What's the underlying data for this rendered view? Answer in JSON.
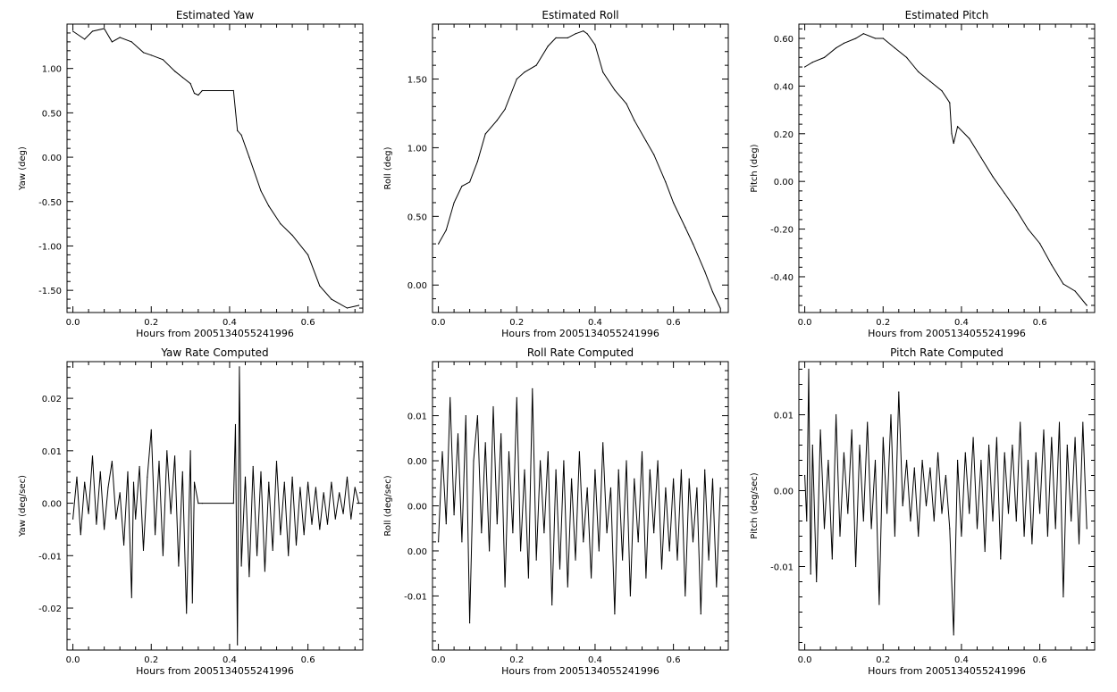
{
  "chart_data": [
    {
      "id": "yaw",
      "type": "line",
      "title": "Estimated Yaw",
      "xlabel": "Hours from 2005134055241996",
      "ylabel": "Yaw (deg)",
      "xlim": [
        -0.015,
        0.74
      ],
      "ylim": [
        -1.75,
        1.5
      ],
      "xticks": [
        0.0,
        0.2,
        0.4,
        0.6
      ],
      "xtick_labels": [
        "0.0",
        "0.2",
        "0.4",
        "0.6"
      ],
      "yticks": [
        -1.5,
        -1.0,
        -0.5,
        0.0,
        0.5,
        1.0
      ],
      "ytick_labels": [
        "-1.50",
        "-1.00",
        "-0.50",
        "0.00",
        "0.50",
        "1.00"
      ],
      "grid": false,
      "series": [
        {
          "x": [
            0.0,
            0.03,
            0.05,
            0.08,
            0.1,
            0.12,
            0.15,
            0.18,
            0.2,
            0.23,
            0.26,
            0.28,
            0.3,
            0.31,
            0.32,
            0.33,
            0.41,
            0.42,
            0.43,
            0.45,
            0.48,
            0.5,
            0.53,
            0.56,
            0.6,
            0.63,
            0.66,
            0.7,
            0.73
          ],
          "y": [
            1.42,
            1.33,
            1.42,
            1.45,
            1.3,
            1.35,
            1.3,
            1.18,
            1.15,
            1.1,
            0.97,
            0.9,
            0.83,
            0.72,
            0.7,
            0.75,
            0.75,
            0.3,
            0.25,
            0.0,
            -0.38,
            -0.55,
            -0.75,
            -0.88,
            -1.1,
            -1.45,
            -1.6,
            -1.7,
            -1.67
          ]
        }
      ]
    },
    {
      "id": "roll",
      "type": "line",
      "title": "Estimated Roll",
      "xlabel": "Hours from 2005134055241996",
      "ylabel": "Roll (deg)",
      "xlim": [
        -0.015,
        0.74
      ],
      "ylim": [
        -0.2,
        1.9
      ],
      "xticks": [
        0.0,
        0.2,
        0.4,
        0.6
      ],
      "xtick_labels": [
        "0.0",
        "0.2",
        "0.4",
        "0.6"
      ],
      "yticks": [
        0.0,
        0.5,
        1.0,
        1.5
      ],
      "ytick_labels": [
        "0.00",
        "0.50",
        "1.00",
        "1.50"
      ],
      "grid": false,
      "series": [
        {
          "x": [
            0.0,
            0.02,
            0.04,
            0.06,
            0.08,
            0.1,
            0.12,
            0.15,
            0.17,
            0.2,
            0.22,
            0.25,
            0.28,
            0.3,
            0.33,
            0.35,
            0.37,
            0.38,
            0.4,
            0.42,
            0.45,
            0.48,
            0.5,
            0.53,
            0.55,
            0.58,
            0.6,
            0.63,
            0.65,
            0.68,
            0.7,
            0.72
          ],
          "y": [
            0.3,
            0.4,
            0.6,
            0.72,
            0.75,
            0.9,
            1.1,
            1.2,
            1.28,
            1.5,
            1.55,
            1.6,
            1.74,
            1.8,
            1.8,
            1.83,
            1.85,
            1.83,
            1.75,
            1.55,
            1.42,
            1.32,
            1.2,
            1.05,
            0.95,
            0.75,
            0.6,
            0.42,
            0.3,
            0.1,
            -0.05,
            -0.17
          ]
        }
      ]
    },
    {
      "id": "pitch",
      "type": "line",
      "title": "Estimated Pitch",
      "xlabel": "Hours from 2005134055241996",
      "ylabel": "Pitch (deg)",
      "xlim": [
        -0.015,
        0.74
      ],
      "ylim": [
        -0.55,
        0.66
      ],
      "xticks": [
        0.0,
        0.2,
        0.4,
        0.6
      ],
      "xtick_labels": [
        "0.0",
        "0.2",
        "0.4",
        "0.6"
      ],
      "yticks": [
        -0.4,
        -0.2,
        0.0,
        0.2,
        0.4,
        0.6
      ],
      "ytick_labels": [
        "-0.40",
        "-0.20",
        "0.00",
        "0.20",
        "0.40",
        "0.60"
      ],
      "grid": false,
      "series": [
        {
          "x": [
            0.0,
            0.02,
            0.05,
            0.08,
            0.1,
            0.13,
            0.15,
            0.18,
            0.2,
            0.23,
            0.26,
            0.29,
            0.32,
            0.35,
            0.37,
            0.375,
            0.38,
            0.39,
            0.42,
            0.45,
            0.48,
            0.51,
            0.54,
            0.57,
            0.6,
            0.63,
            0.66,
            0.69,
            0.72
          ],
          "y": [
            0.48,
            0.5,
            0.52,
            0.56,
            0.58,
            0.6,
            0.62,
            0.6,
            0.6,
            0.56,
            0.52,
            0.46,
            0.42,
            0.38,
            0.33,
            0.2,
            0.16,
            0.23,
            0.18,
            0.1,
            0.02,
            -0.05,
            -0.12,
            -0.2,
            -0.26,
            -0.35,
            -0.43,
            -0.46,
            -0.52
          ]
        }
      ]
    },
    {
      "id": "yaw_rate",
      "type": "line",
      "title": "Yaw Rate Computed",
      "xlabel": "Hours from 2005134055241996",
      "ylabel": "Yaw (deg/sec)",
      "xlim": [
        -0.015,
        0.74
      ],
      "ylim": [
        -0.028,
        0.027
      ],
      "xticks": [
        0.0,
        0.2,
        0.4,
        0.6
      ],
      "xtick_labels": [
        "0.0",
        "0.2",
        "0.4",
        "0.6"
      ],
      "yticks": [
        -0.02,
        -0.01,
        0.0,
        0.01,
        0.02
      ],
      "ytick_labels": [
        "-0.02",
        "-0.01",
        "0.00",
        "0.01",
        "0.02"
      ],
      "grid": false,
      "series": [
        {
          "x": [
            0.0,
            0.01,
            0.02,
            0.03,
            0.04,
            0.05,
            0.06,
            0.07,
            0.08,
            0.09,
            0.1,
            0.11,
            0.12,
            0.13,
            0.14,
            0.15,
            0.155,
            0.16,
            0.17,
            0.18,
            0.19,
            0.2,
            0.21,
            0.22,
            0.23,
            0.24,
            0.25,
            0.26,
            0.27,
            0.28,
            0.29,
            0.3,
            0.305,
            0.31,
            0.32,
            0.33,
            0.41,
            0.415,
            0.42,
            0.425,
            0.43,
            0.44,
            0.45,
            0.46,
            0.47,
            0.48,
            0.49,
            0.5,
            0.51,
            0.52,
            0.53,
            0.54,
            0.55,
            0.56,
            0.57,
            0.58,
            0.59,
            0.6,
            0.61,
            0.62,
            0.63,
            0.64,
            0.65,
            0.66,
            0.67,
            0.68,
            0.69,
            0.7,
            0.71,
            0.72,
            0.73
          ],
          "y": [
            -0.003,
            0.005,
            -0.006,
            0.004,
            -0.002,
            0.009,
            -0.004,
            0.006,
            -0.005,
            0.003,
            0.008,
            -0.003,
            0.002,
            -0.008,
            0.006,
            -0.018,
            0.004,
            -0.003,
            0.007,
            -0.009,
            0.005,
            0.014,
            -0.006,
            0.008,
            -0.01,
            0.01,
            -0.002,
            0.009,
            -0.012,
            0.006,
            -0.021,
            0.01,
            -0.019,
            0.004,
            0.0,
            0.0,
            0.0,
            0.015,
            -0.027,
            0.026,
            -0.012,
            0.005,
            -0.014,
            0.007,
            -0.01,
            0.006,
            -0.013,
            0.004,
            -0.009,
            0.008,
            -0.006,
            0.004,
            -0.01,
            0.005,
            -0.008,
            0.003,
            -0.006,
            0.004,
            -0.004,
            0.003,
            -0.005,
            0.002,
            -0.004,
            0.004,
            -0.003,
            0.002,
            -0.002,
            0.005,
            -0.003,
            0.003,
            0.0
          ]
        }
      ]
    },
    {
      "id": "roll_rate",
      "type": "line",
      "title": "Roll Rate Computed",
      "xlabel": "Hours from 2005134055241996",
      "ylabel": "Roll (deg/sec)",
      "xlim": [
        -0.015,
        0.74
      ],
      "ylim": [
        -0.016,
        0.016
      ],
      "xticks": [
        0.0,
        0.2,
        0.4,
        0.6
      ],
      "xtick_labels": [
        "0.0",
        "0.2",
        "0.4",
        "0.6"
      ],
      "yticks": [
        -0.01,
        -0.005,
        0.0,
        0.005,
        0.01
      ],
      "ytick_labels": [
        "-0.01",
        "0.00",
        "0.00",
        "0.00",
        "0.01"
      ],
      "grid": false,
      "series": [
        {
          "x": [
            0.0,
            0.01,
            0.02,
            0.03,
            0.04,
            0.05,
            0.06,
            0.07,
            0.08,
            0.09,
            0.1,
            0.11,
            0.12,
            0.13,
            0.14,
            0.15,
            0.16,
            0.17,
            0.18,
            0.19,
            0.2,
            0.21,
            0.22,
            0.23,
            0.24,
            0.25,
            0.26,
            0.27,
            0.28,
            0.29,
            0.3,
            0.31,
            0.32,
            0.33,
            0.34,
            0.35,
            0.36,
            0.37,
            0.38,
            0.39,
            0.4,
            0.41,
            0.42,
            0.43,
            0.44,
            0.45,
            0.46,
            0.47,
            0.48,
            0.49,
            0.5,
            0.51,
            0.52,
            0.53,
            0.54,
            0.55,
            0.56,
            0.57,
            0.58,
            0.59,
            0.6,
            0.61,
            0.62,
            0.63,
            0.64,
            0.65,
            0.66,
            0.67,
            0.68,
            0.69,
            0.7,
            0.71,
            0.72
          ],
          "y": [
            -0.004,
            0.006,
            -0.002,
            0.012,
            -0.001,
            0.008,
            -0.004,
            0.01,
            -0.013,
            0.005,
            0.01,
            -0.003,
            0.007,
            -0.005,
            0.011,
            -0.002,
            0.008,
            -0.009,
            0.006,
            -0.003,
            0.012,
            -0.005,
            0.004,
            -0.008,
            0.013,
            -0.006,
            0.005,
            -0.003,
            0.006,
            -0.011,
            0.004,
            -0.007,
            0.005,
            -0.009,
            0.003,
            -0.006,
            0.006,
            -0.004,
            0.002,
            -0.008,
            0.004,
            -0.005,
            0.007,
            -0.003,
            0.002,
            -0.012,
            0.004,
            -0.006,
            0.005,
            -0.01,
            0.003,
            -0.004,
            0.006,
            -0.008,
            0.004,
            -0.003,
            0.005,
            -0.007,
            0.002,
            -0.005,
            0.003,
            -0.006,
            0.004,
            -0.01,
            0.003,
            -0.004,
            0.002,
            -0.012,
            0.004,
            -0.006,
            0.003,
            -0.009,
            0.002
          ]
        }
      ]
    },
    {
      "id": "pitch_rate",
      "type": "line",
      "title": "Pitch Rate Computed",
      "xlabel": "Hours from 2005134055241996",
      "ylabel": "Pitch (deg/sec)",
      "xlim": [
        -0.015,
        0.74
      ],
      "ylim": [
        -0.021,
        0.017
      ],
      "xticks": [
        0.0,
        0.2,
        0.4,
        0.6
      ],
      "xtick_labels": [
        "0.0",
        "0.2",
        "0.4",
        "0.6"
      ],
      "yticks": [
        -0.01,
        0.0,
        0.01
      ],
      "ytick_labels": [
        "-0.01",
        "0.00",
        "0.01"
      ],
      "grid": false,
      "series": [
        {
          "x": [
            0.0,
            0.005,
            0.01,
            0.015,
            0.02,
            0.03,
            0.04,
            0.05,
            0.06,
            0.07,
            0.08,
            0.09,
            0.1,
            0.11,
            0.12,
            0.13,
            0.14,
            0.15,
            0.16,
            0.17,
            0.18,
            0.19,
            0.2,
            0.21,
            0.22,
            0.23,
            0.24,
            0.25,
            0.26,
            0.27,
            0.28,
            0.29,
            0.3,
            0.31,
            0.32,
            0.33,
            0.34,
            0.35,
            0.36,
            0.37,
            0.38,
            0.39,
            0.4,
            0.41,
            0.42,
            0.43,
            0.44,
            0.45,
            0.46,
            0.47,
            0.48,
            0.49,
            0.5,
            0.51,
            0.52,
            0.53,
            0.54,
            0.55,
            0.56,
            0.57,
            0.58,
            0.59,
            0.6,
            0.61,
            0.62,
            0.63,
            0.64,
            0.65,
            0.66,
            0.67,
            0.68,
            0.69,
            0.7,
            0.71,
            0.72
          ],
          "y": [
            0.002,
            -0.004,
            0.016,
            -0.011,
            0.006,
            -0.012,
            0.008,
            -0.005,
            0.004,
            -0.009,
            0.01,
            -0.006,
            0.005,
            -0.003,
            0.008,
            -0.01,
            0.006,
            -0.004,
            0.009,
            -0.005,
            0.004,
            -0.015,
            0.007,
            -0.003,
            0.01,
            -0.006,
            0.013,
            -0.002,
            0.004,
            -0.004,
            0.003,
            -0.006,
            0.004,
            -0.002,
            0.003,
            -0.004,
            0.005,
            -0.003,
            0.002,
            -0.005,
            -0.019,
            0.004,
            -0.006,
            0.005,
            -0.003,
            0.007,
            -0.005,
            0.004,
            -0.008,
            0.006,
            -0.004,
            0.007,
            -0.009,
            0.005,
            -0.003,
            0.006,
            -0.004,
            0.009,
            -0.006,
            0.004,
            -0.007,
            0.005,
            -0.003,
            0.008,
            -0.006,
            0.007,
            -0.005,
            0.009,
            -0.014,
            0.006,
            -0.004,
            0.007,
            -0.007,
            0.009,
            -0.005
          ]
        }
      ]
    }
  ]
}
